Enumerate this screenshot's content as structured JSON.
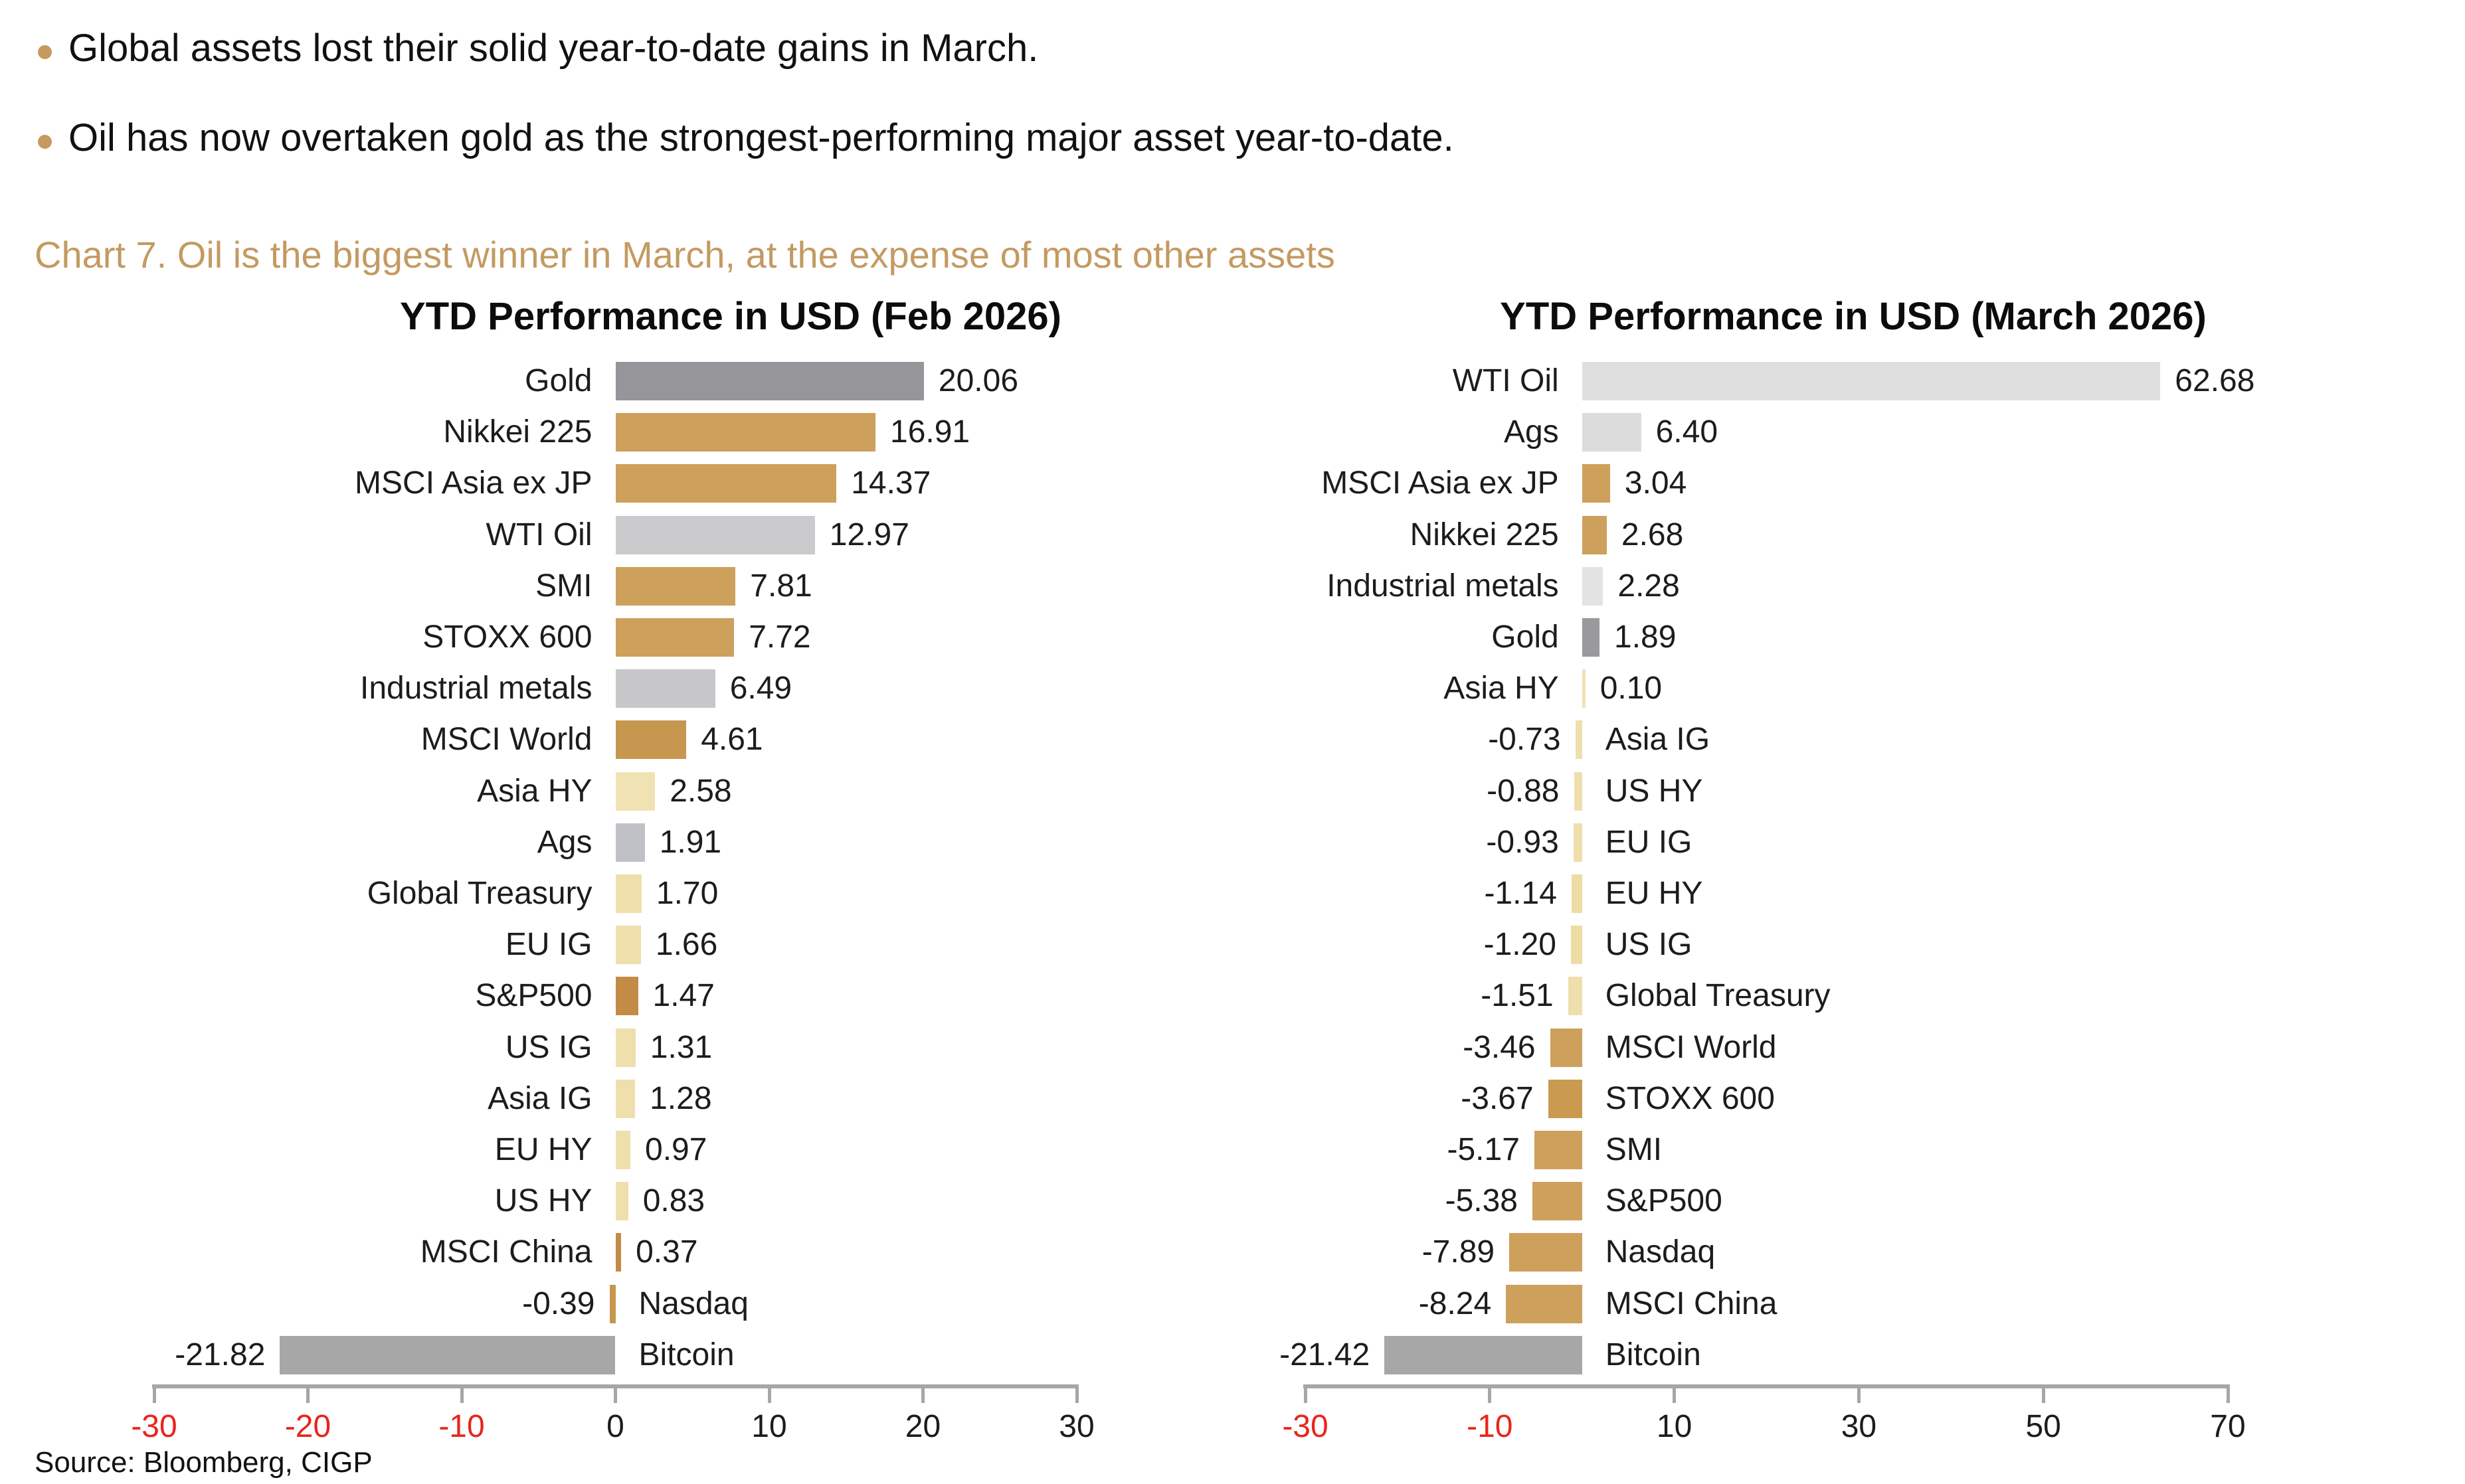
{
  "page": {
    "bullets": [
      "Global assets lost their solid year-to-date gains in March.",
      "Oil has now overtaken gold as the strongest-performing major asset year-to-date."
    ],
    "chart_heading": "Chart 7. Oil is the biggest winner in March, at the expense of most other assets",
    "source": "Source: Bloomberg, CIGP"
  },
  "colors": {
    "bullet_dot": "#c59a5f",
    "heading_text": "#c49a62",
    "axis": "#a6a6a6",
    "negative_tick": "#e8251d",
    "positive_tick": "#1c1c1c"
  },
  "chart_data": [
    {
      "type": "bar",
      "orientation": "horizontal",
      "title": "YTD Performance in USD (Feb 2026)",
      "xlim": [
        -30,
        30
      ],
      "x_ticks": [
        -30,
        -20,
        -10,
        0,
        10,
        20,
        30
      ],
      "grid": false,
      "value_label_format": "2dp",
      "categories": [
        "Gold",
        "Nikkei 225",
        "MSCI Asia ex JP",
        "WTI Oil",
        "SMI",
        "STOXX 600",
        "Industrial metals",
        "MSCI World",
        "Asia HY",
        "Ags",
        "Global Treasury",
        "EU IG",
        "S&P500",
        "US IG",
        "Asia IG",
        "EU HY",
        "US HY",
        "MSCI China",
        "Nasdaq",
        "Bitcoin"
      ],
      "values": [
        20.06,
        16.91,
        14.37,
        12.97,
        7.81,
        7.72,
        6.49,
        4.61,
        2.58,
        1.91,
        1.7,
        1.66,
        1.47,
        1.31,
        1.28,
        0.97,
        0.83,
        0.37,
        -0.39,
        -21.82
      ],
      "bar_colors": [
        "#95959a",
        "#cda05c",
        "#cda05c",
        "#cbcbce",
        "#cda05c",
        "#cda05c",
        "#c7c7c9",
        "#c7974f",
        "#f1e2b4",
        "#c0c0c7",
        "#efdfac",
        "#efdfac",
        "#c38b46",
        "#efdfac",
        "#efdfac",
        "#efdfac",
        "#efdfac",
        "#c38b46",
        "#c7974f",
        "#a7a7a7"
      ]
    },
    {
      "type": "bar",
      "orientation": "horizontal",
      "title": "YTD Performance in USD (March 2026)",
      "xlim": [
        -30,
        70
      ],
      "x_ticks": [
        -30,
        -10,
        10,
        30,
        50,
        70
      ],
      "grid": false,
      "value_label_format": "2dp",
      "categories": [
        "WTI Oil",
        "Ags",
        "MSCI Asia ex JP",
        "Nikkei 225",
        "Industrial metals",
        "Gold",
        "Asia HY",
        "Asia IG",
        "US HY",
        "EU IG",
        "EU HY",
        "US IG",
        "Global Treasury",
        "MSCI World",
        "STOXX 600",
        "SMI",
        "S&P500",
        "Nasdaq",
        "MSCI China",
        "Bitcoin"
      ],
      "values": [
        62.68,
        6.4,
        3.04,
        2.68,
        2.28,
        1.89,
        0.1,
        -0.73,
        -0.88,
        -0.93,
        -1.14,
        -1.2,
        -1.51,
        -3.46,
        -3.67,
        -5.17,
        -5.38,
        -7.89,
        -8.24,
        -21.42
      ],
      "bar_colors": [
        "#dfdfdf",
        "#dcdcdc",
        "#cda05c",
        "#cda05c",
        "#e3e3e3",
        "#9a9a9c",
        "#f1e2b4",
        "#efdfac",
        "#efdfac",
        "#efdfac",
        "#eddca4",
        "#eddca4",
        "#efdfac",
        "#cda05c",
        "#c99a50",
        "#cda05c",
        "#cda05c",
        "#cda05c",
        "#cda05c",
        "#a7a7a7"
      ]
    }
  ]
}
